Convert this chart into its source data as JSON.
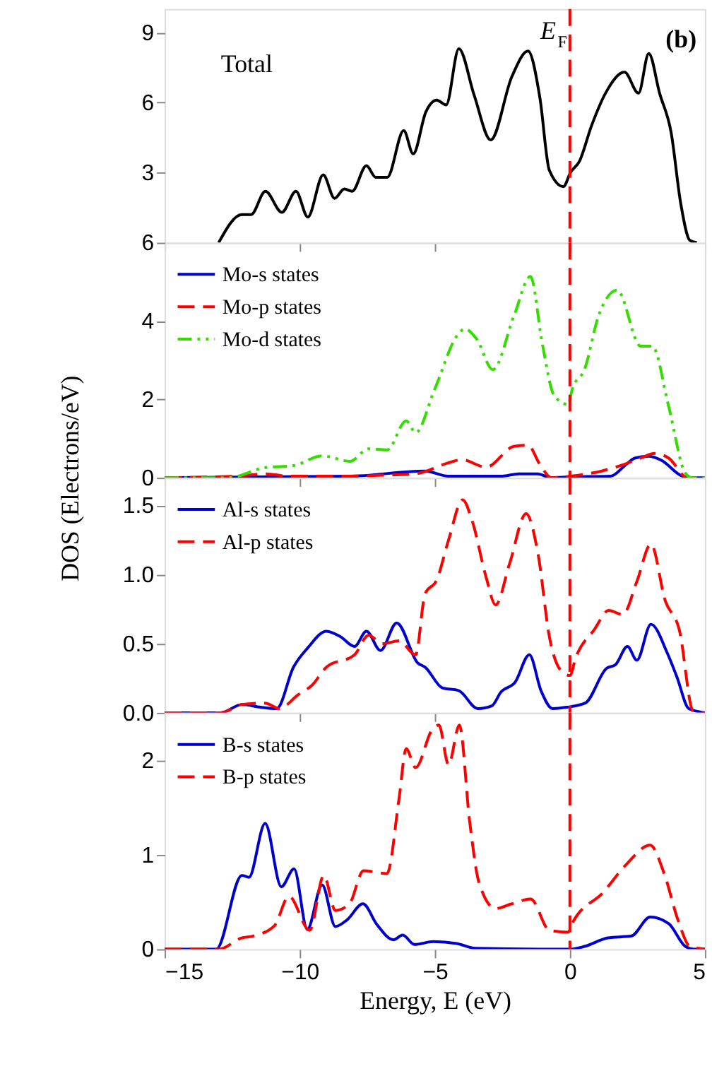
{
  "chart_data": [
    {
      "type": "line",
      "xlim": [
        -15,
        5
      ],
      "xticks": [
        -15,
        -10,
        -5,
        0,
        5
      ],
      "ylim": [
        0,
        10
      ],
      "yticks": [
        3,
        6,
        9
      ],
      "tick_labels": "y",
      "legend": false,
      "annotations": [
        "Total",
        "(b)"
      ],
      "ref_lines": [
        {
          "axis": "x",
          "value": 0,
          "label": "E$_{F}$",
          "color": "#ff0000",
          "line_style": "dashed"
        }
      ],
      "series": [
        {
          "color": "#000000",
          "line_style": "solid",
          "x": [
            -13.0,
            -12.14,
            -11.8,
            -11.27,
            -10.66,
            -10.14,
            -9.7,
            -9.13,
            -8.71,
            -8.35,
            -8.06,
            -7.53,
            -7.19,
            -6.76,
            -6.15,
            -5.8,
            -5.33,
            -4.93,
            -4.58,
            -4.11,
            -3.54,
            -2.93,
            -2.15,
            -1.55,
            -1.11,
            -0.76,
            -0.24,
            0.02,
            0.36,
            0.8,
            1.32,
            2.02,
            2.54,
            2.92,
            3.32,
            3.75,
            4.1,
            4.44,
            4.7
          ],
          "values": [
            0,
            1.2,
            1.2,
            2.2,
            1.3,
            2.2,
            1.1,
            2.9,
            1.9,
            2.3,
            2.2,
            3.3,
            2.8,
            2.8,
            4.8,
            3.8,
            5.6,
            6.1,
            5.9,
            8.3,
            6.3,
            4.4,
            7.1,
            8.2,
            6.2,
            3.1,
            2.4,
            3.0,
            3.5,
            5.0,
            6.4,
            7.3,
            6.4,
            8.1,
            6.4,
            4.7,
            1.7,
            0.1,
            0
          ]
        }
      ]
    },
    {
      "type": "line",
      "xlim": [
        -15,
        5
      ],
      "xticks": [
        -15,
        -10,
        -5,
        0,
        5
      ],
      "ylim": [
        0,
        6
      ],
      "yticks": [
        0,
        2,
        4,
        6
      ],
      "tick_labels": "y",
      "legend": "top left",
      "ylabel": "DOS (Electrons/eV)",
      "ref_lines": [
        {
          "axis": "x",
          "value": 0,
          "color": "#ff0000",
          "line_style": "dashed"
        }
      ],
      "series": [
        {
          "name": "Mo-s states",
          "color": "#0000cc",
          "line_style": "solid",
          "x": [
            -15,
            -8.1,
            -5.36,
            -4.5,
            -2.5,
            -1.9,
            -1.2,
            -0.7,
            0,
            1.5,
            2.1,
            2.4,
            2.9,
            3.4,
            4.1,
            4.4,
            5
          ],
          "values": [
            0,
            0.04,
            0.17,
            0.04,
            0.04,
            0.1,
            0.1,
            0,
            0.02,
            0.04,
            0.35,
            0.5,
            0.55,
            0.44,
            0.06,
            0,
            0
          ]
        },
        {
          "name": "Mo-p states",
          "color": "#ff0000",
          "line_style": "dashed",
          "x": [
            -15,
            -12.3,
            -11.27,
            -10.4,
            -8.14,
            -7.1,
            -5.71,
            -4.5,
            -4.0,
            -3.1,
            -2.07,
            -1.55,
            -1.11,
            -0.68,
            0.02,
            1.23,
            1.92,
            2.62,
            3.14,
            3.66,
            4.36,
            5
          ],
          "values": [
            0,
            0.04,
            0.1,
            0.04,
            0.04,
            0.06,
            0.1,
            0.38,
            0.46,
            0.27,
            0.8,
            0.83,
            0.34,
            0,
            0.04,
            0.18,
            0.32,
            0.5,
            0.62,
            0.5,
            0,
            0
          ]
        },
        {
          "name": "Mo-d states",
          "color": "#33dd00",
          "line_style": "dotted",
          "x": [
            -15,
            -12.66,
            -11.27,
            -10.22,
            -9.18,
            -8.14,
            -7.45,
            -6.76,
            -6.06,
            -5.71,
            -5.02,
            -4.15,
            -3.89,
            -3.45,
            -2.85,
            -2.07,
            -1.46,
            -1.02,
            -0.59,
            -0.07,
            0.1,
            0.54,
            1.06,
            1.75,
            2.62,
            3.05,
            3.66,
            4.27,
            4.53,
            5
          ],
          "values": [
            0,
            0,
            0.26,
            0.31,
            0.56,
            0.42,
            0.74,
            0.71,
            1.45,
            1.15,
            2.23,
            3.65,
            3.8,
            3.54,
            2.76,
            4.13,
            5.14,
            3.42,
            2.11,
            1.87,
            2.29,
            2.76,
            4.13,
            4.79,
            3.36,
            3.36,
            1.81,
            0.12,
            0,
            0
          ]
        }
      ]
    },
    {
      "type": "line",
      "xlim": [
        -15,
        5
      ],
      "xticks": [
        -15,
        -10,
        -5,
        0,
        5
      ],
      "ylim": [
        0,
        1.7
      ],
      "yticks": [
        {
          "value": 0,
          "label": "0.0"
        },
        0.5,
        {
          "value": 1,
          "label": "1.0"
        },
        1.5
      ],
      "tick_labels": "y",
      "legend": "top left",
      "ref_lines": [
        {
          "axis": "x",
          "value": 0,
          "color": "#ff0000",
          "line_style": "dashed"
        }
      ],
      "series": [
        {
          "name": "Al-s states",
          "color": "#0000cc",
          "line_style": "solid",
          "x": [
            -15,
            -12.92,
            -12.14,
            -11.45,
            -10.85,
            -10.23,
            -9.7,
            -9.01,
            -8.49,
            -7.97,
            -7.53,
            -7.01,
            -6.41,
            -5.63,
            -5.36,
            -4.72,
            -4.11,
            -3.41,
            -2.89,
            -2.55,
            -2.03,
            -1.5,
            -1.07,
            -0.64,
            -0.12,
            0.57,
            1.35,
            1.7,
            2.13,
            2.48,
            3.0,
            3.61,
            3.96,
            4.4,
            5
          ],
          "values": [
            0,
            0,
            0.06,
            0.04,
            0.03,
            0.33,
            0.47,
            0.59,
            0.55,
            0.48,
            0.59,
            0.45,
            0.65,
            0.36,
            0.33,
            0.18,
            0.16,
            0.03,
            0.05,
            0.15,
            0.22,
            0.42,
            0.16,
            0.03,
            0.04,
            0.07,
            0.32,
            0.35,
            0.48,
            0.38,
            0.64,
            0.43,
            0.26,
            0.03,
            0
          ]
        },
        {
          "name": "Al-p states",
          "color": "#ff0000",
          "line_style": "dashed",
          "x": [
            -15,
            -12.92,
            -12.14,
            -11.28,
            -10.76,
            -10.06,
            -9.54,
            -9.01,
            -7.97,
            -7.45,
            -6.93,
            -6.32,
            -5.71,
            -5.36,
            -4.93,
            -4.49,
            -3.97,
            -3.62,
            -3.1,
            -2.75,
            -2.23,
            -1.62,
            -1.18,
            -0.75,
            -0.31,
            0.0,
            0.22,
            0.9,
            1.44,
            1.96,
            2.48,
            3.0,
            3.53,
            4.05,
            4.57,
            5
          ],
          "values": [
            0,
            0,
            0.06,
            0.07,
            0.03,
            0.13,
            0.2,
            0.33,
            0.42,
            0.56,
            0.5,
            0.52,
            0.42,
            0.86,
            0.96,
            1.25,
            1.54,
            1.39,
            0.98,
            0.78,
            1.08,
            1.44,
            1.15,
            0.54,
            0.3,
            0.27,
            0.4,
            0.6,
            0.74,
            0.71,
            0.95,
            1.22,
            0.81,
            0.6,
            0.01,
            0
          ]
        }
      ]
    },
    {
      "type": "line",
      "xlim": [
        -15,
        5
      ],
      "xticks": [
        -15,
        -10,
        -5,
        0,
        5
      ],
      "ylim": [
        0,
        2.5
      ],
      "yticks": [
        0,
        1,
        2
      ],
      "xlabel": "Energy, E (eV)",
      "legend": "top left",
      "ref_lines": [
        {
          "axis": "x",
          "value": 0,
          "color": "#ff0000",
          "line_style": "dashed"
        }
      ],
      "series": [
        {
          "name": "B-s states",
          "color": "#0000cc",
          "line_style": "solid",
          "x": [
            -15,
            -13.09,
            -12.14,
            -11.88,
            -11.28,
            -10.68,
            -10.21,
            -9.72,
            -9.17,
            -8.68,
            -8.25,
            -7.66,
            -7.14,
            -6.53,
            -6.19,
            -5.75,
            -5.06,
            -4.19,
            -3.5,
            0,
            0.55,
            1.41,
            2.28,
            2.97,
            3.66,
            4.27,
            4.6,
            5
          ],
          "values": [
            0,
            0,
            0.78,
            0.76,
            1.33,
            0.66,
            0.85,
            0.21,
            0.68,
            0.24,
            0.31,
            0.48,
            0.26,
            0.1,
            0.15,
            0.05,
            0.08,
            0.06,
            0.01,
            0,
            0.03,
            0.12,
            0.14,
            0.34,
            0.27,
            0.03,
            0,
            0
          ]
        },
        {
          "name": "B-p states",
          "color": "#ff0000",
          "line_style": "dashed",
          "x": [
            -15,
            -13,
            -12.14,
            -11.71,
            -10.93,
            -10.4,
            -9.63,
            -9.11,
            -8.68,
            -8.16,
            -7.64,
            -6.77,
            -6.32,
            -6.06,
            -5.71,
            -5.1,
            -4.85,
            -4.49,
            -4.09,
            -3.71,
            -3.36,
            -2.75,
            -2.15,
            -1.45,
            -0.76,
            -0.07,
            0.1,
            1.23,
            2.1,
            2.97,
            3.49,
            4.0,
            4.44,
            5
          ],
          "values": [
            0,
            0,
            0.12,
            0.14,
            0.25,
            0.56,
            0.2,
            0.78,
            0.41,
            0.48,
            0.83,
            0.8,
            1.6,
            2.12,
            1.92,
            2.32,
            2.37,
            1.95,
            2.37,
            1.35,
            0.7,
            0.43,
            0.48,
            0.53,
            0.2,
            0.18,
            0.28,
            0.6,
            0.9,
            1.1,
            0.8,
            0.31,
            0.03,
            0
          ]
        }
      ]
    }
  ]
}
